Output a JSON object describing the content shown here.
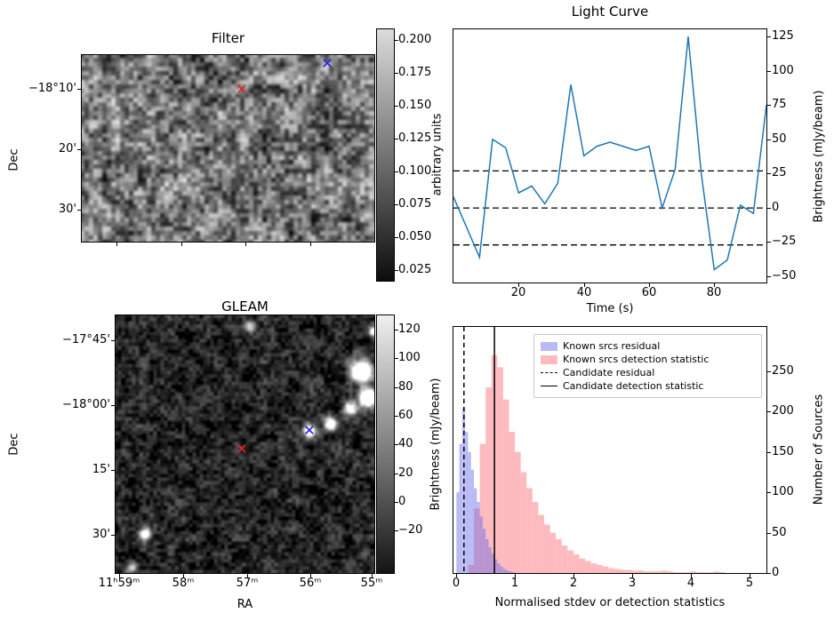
{
  "filter_panel": {
    "title": "Filter",
    "ylabel": "Dec",
    "ytick_labels": [
      "−18°10'",
      "20'",
      "30'"
    ],
    "colorbar_label": "arbitrary units",
    "colorbar_ticks": [
      "0.200",
      "0.175",
      "0.150",
      "0.125",
      "0.100",
      "0.075",
      "0.050",
      "0.025"
    ],
    "markers": [
      {
        "name": "candidate-position-marker",
        "symbol": "x",
        "color": "#e62222",
        "fx": 0.547,
        "fy": 0.181
      },
      {
        "name": "known-source-marker",
        "symbol": "x",
        "color": "#2020e0",
        "fx": 0.839,
        "fy": 0.043
      }
    ]
  },
  "gleam_panel": {
    "title": "GLEAM",
    "ylabel": "Dec",
    "xlabel": "RA",
    "ytick_labels": [
      "−17°45'",
      "−18°00'",
      "15'",
      "30'"
    ],
    "xtick_labels": [
      "11ʰ59ᵐ",
      "58ᵐ",
      "57ᵐ",
      "56ᵐ",
      "55ᵐ"
    ],
    "colorbar_label": "Brightness (mJy/beam)",
    "colorbar_ticks": [
      "120",
      "100",
      "80",
      "60",
      "40",
      "20",
      "0",
      "−20"
    ],
    "markers": [
      {
        "name": "candidate-position-marker",
        "symbol": "x",
        "color": "#e62222",
        "fx": 0.488,
        "fy": 0.517
      },
      {
        "name": "known-source-marker",
        "symbol": "x",
        "color": "#2020e0",
        "fx": 0.749,
        "fy": 0.445
      }
    ],
    "sources": [
      {
        "fx": 0.949,
        "fy": 0.217,
        "r": 8,
        "i": 1.8
      },
      {
        "fx": 0.975,
        "fy": 0.318,
        "r": 7,
        "i": 1.6
      },
      {
        "fx": 0.905,
        "fy": 0.36,
        "r": 5,
        "i": 1.0
      },
      {
        "fx": 0.83,
        "fy": 0.42,
        "r": 5,
        "i": 1.1
      },
      {
        "fx": 0.749,
        "fy": 0.445,
        "r": 5,
        "i": 1.2
      },
      {
        "fx": 0.52,
        "fy": 0.04,
        "r": 4,
        "i": 0.8
      },
      {
        "fx": 0.113,
        "fy": 0.848,
        "r": 4.5,
        "i": 1.0
      },
      {
        "fx": 0.06,
        "fy": 0.98,
        "r": 4,
        "i": 0.7
      },
      {
        "fx": 0.995,
        "fy": 0.06,
        "r": 4,
        "i": 0.9
      }
    ]
  },
  "chart_data": [
    {
      "id": "light_curve",
      "type": "line",
      "title": "Light Curve",
      "xlabel": "Time (s)",
      "ylabel": "Brightness (mJy/beam)",
      "xlim": [
        0,
        96
      ],
      "ylim": [
        -54.4,
        130.3
      ],
      "xtick_values": [
        20,
        40,
        60,
        80
      ],
      "xtick_labels": [
        "20",
        "40",
        "60",
        "80"
      ],
      "ytick_values": [
        125,
        100,
        75,
        50,
        25,
        0,
        -25,
        -50
      ],
      "ytick_labels": [
        "125",
        "100",
        "75",
        "50",
        "25",
        "0",
        "−25",
        "−50"
      ],
      "line_color": "#1f77b4",
      "hlines": [
        27,
        0,
        -27
      ],
      "hline_style": "dashed",
      "hline_color": "#000000",
      "x": [
        0,
        4,
        8,
        12,
        16,
        20,
        24,
        28,
        32,
        36,
        40,
        44,
        48,
        52,
        56,
        60,
        64,
        68,
        72,
        76,
        80,
        84,
        88,
        92,
        96
      ],
      "y": [
        8,
        -14,
        -36,
        50,
        44,
        11,
        16,
        3,
        18,
        90,
        38,
        45,
        48,
        45,
        42,
        45,
        0,
        28,
        125,
        25,
        -45,
        -38,
        2,
        -4,
        75
      ]
    },
    {
      "id": "histogram",
      "type": "bar",
      "title": "",
      "xlabel": "Normalised stdev or detection statistics",
      "ylabel": "Number of Sources",
      "xlim": [
        -0.05,
        5.3
      ],
      "ylim": [
        0,
        305
      ],
      "xtick_values": [
        0,
        1,
        2,
        3,
        4,
        5
      ],
      "xtick_labels": [
        "0",
        "1",
        "2",
        "3",
        "4",
        "5"
      ],
      "ytick_values": [
        0,
        50,
        100,
        150,
        200,
        250
      ],
      "ytick_labels": [
        "0",
        "50",
        "100",
        "150",
        "200",
        "250"
      ],
      "series": [
        {
          "name": "Known srcs residual",
          "color": "rgba(102,102,235,0.45)",
          "bin_start": 0.0,
          "bin_width": 0.05,
          "counts": [
            100,
            160,
            205,
            175,
            150,
            128,
            105,
            88,
            70,
            55,
            42,
            32,
            24,
            17,
            12,
            8,
            5,
            3,
            2,
            1
          ]
        },
        {
          "name": "Known srcs detection statistic",
          "color": "rgba(250,104,112,0.45)",
          "bin_start": 0.2,
          "bin_width": 0.1,
          "counts": [
            10,
            80,
            160,
            230,
            270,
            255,
            215,
            175,
            150,
            125,
            105,
            88,
            72,
            60,
            50,
            42,
            34,
            28,
            23,
            18,
            15,
            12,
            10,
            8,
            6,
            5,
            4,
            4,
            3,
            3,
            2,
            2,
            2,
            3,
            2,
            1,
            1,
            1,
            2,
            1,
            1,
            1,
            2,
            1
          ]
        }
      ],
      "vlines": [
        {
          "label": "Candidate residual",
          "x": 0.13,
          "style": "dashed",
          "color": "#000000"
        },
        {
          "label": "Candidate detection statistic",
          "x": 0.65,
          "style": "solid",
          "color": "#000000"
        }
      ],
      "legend": [
        "Known srcs residual",
        "Known srcs detection statistic",
        "Candidate residual",
        "Candidate detection statistic"
      ],
      "legend_position": "upper right"
    }
  ]
}
